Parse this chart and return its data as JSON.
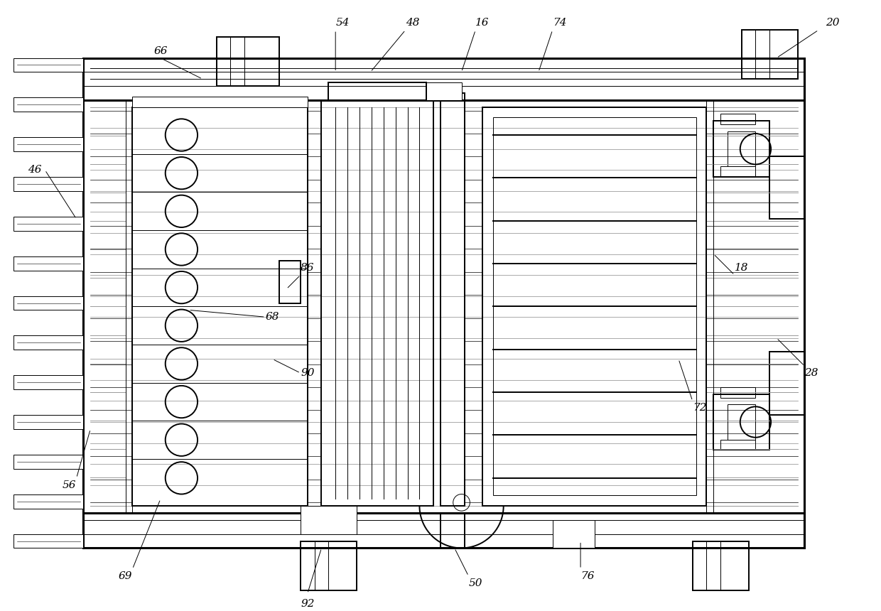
{
  "bg_color": "#ffffff",
  "line_color": "#000000",
  "fig_width": 12.4,
  "fig_height": 8.6,
  "lw_thick": 2.2,
  "lw_med": 1.4,
  "lw_thin": 0.7,
  "lw_vthin": 0.5
}
